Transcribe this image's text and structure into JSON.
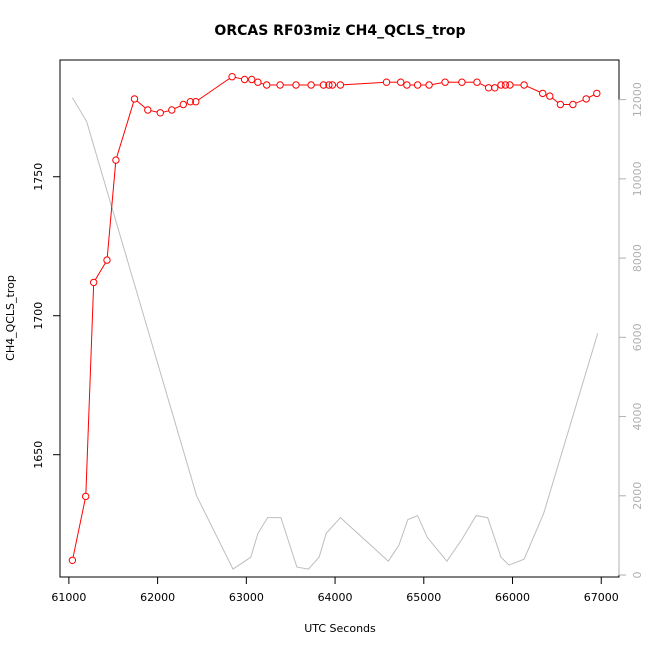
{
  "chart_data": {
    "type": "line",
    "title": "ORCAS RF03miz CH4_QCLS_trop",
    "xlabel": "UTC Seconds",
    "ylabel": "CH4_QCLS_trop",
    "xlim": [
      60900,
      67200
    ],
    "ylim": [
      1606,
      1792
    ],
    "y2lim": [
      -50,
      13000
    ],
    "x_ticks": [
      61000,
      62000,
      63000,
      64000,
      65000,
      66000,
      67000
    ],
    "y_ticks": [
      1650,
      1700,
      1750
    ],
    "y2_ticks": [
      0,
      2000,
      4000,
      6000,
      8000,
      10000,
      12000
    ],
    "grid": false,
    "colors": {
      "ch4": "#ff0000",
      "altitude": "#bebebe",
      "frame": "#000000",
      "right_axis": "#b0b0b0"
    },
    "series": [
      {
        "axis": "left",
        "style": "line+circles",
        "x": [
          61040,
          61190,
          61280,
          61430,
          61530,
          61740,
          61890,
          62030,
          62160,
          62290,
          62370,
          62430,
          62840,
          62980,
          63060,
          63130,
          63230,
          63380,
          63560,
          63730,
          63870,
          63930,
          63970,
          64060,
          64580,
          64740,
          64810,
          64930,
          65060,
          65240,
          65430,
          65600,
          65730,
          65800,
          65870,
          65920,
          65970,
          66130,
          66340,
          66420,
          66540,
          66680,
          66830,
          66950
        ],
        "y": [
          1612,
          1635,
          1712,
          1720,
          1756,
          1778,
          1774,
          1773,
          1774,
          1776,
          1777,
          1777,
          1786,
          1785,
          1785,
          1784,
          1783,
          1783,
          1783,
          1783,
          1783,
          1783,
          1783,
          1783,
          1784,
          1784,
          1783,
          1783,
          1783,
          1784,
          1784,
          1784,
          1782,
          1782,
          1783,
          1783,
          1783,
          1783,
          1780,
          1779,
          1776,
          1776,
          1778,
          1780
        ]
      },
      {
        "axis": "right",
        "style": "line",
        "x": [
          61040,
          61200,
          62440,
          62850,
          63050,
          63130,
          63240,
          63390,
          63570,
          63700,
          63820,
          63900,
          64060,
          64600,
          64720,
          64820,
          64930,
          65040,
          65260,
          65430,
          65590,
          65720,
          65870,
          65960,
          66130,
          66350,
          66960
        ],
        "y": [
          12050,
          11450,
          2000,
          150,
          450,
          1050,
          1450,
          1450,
          200,
          150,
          450,
          1050,
          1450,
          350,
          750,
          1400,
          1500,
          950,
          350,
          900,
          1500,
          1450,
          450,
          250,
          400,
          1550,
          6100
        ]
      }
    ]
  }
}
